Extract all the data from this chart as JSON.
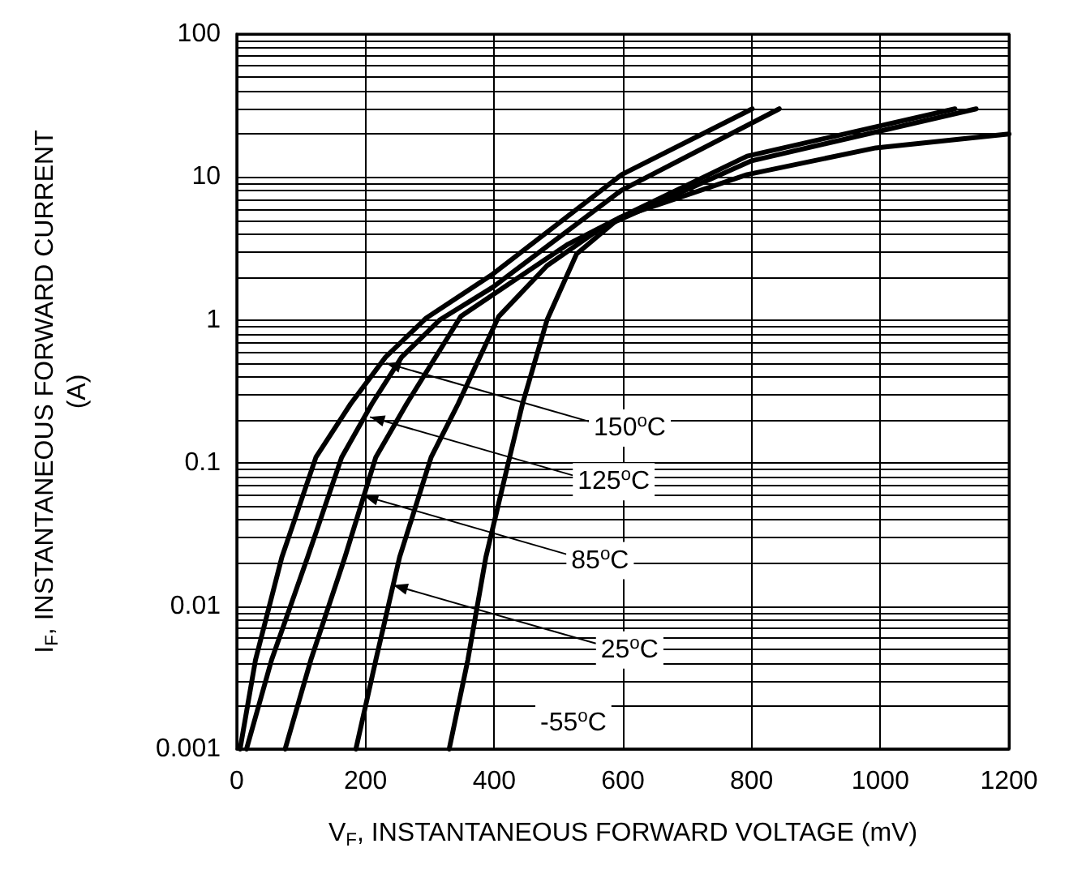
{
  "chart_data": {
    "type": "line",
    "xlabel": "V$_{F}$, INSTANTANEOUS FORWARD VOLTAGE (mV)",
    "ylabel": "I$_{F}$, INSTANTANEOUS FORWARD CURRENT\n(A)",
    "xlim": [
      0,
      1200
    ],
    "xticks": [
      0,
      200,
      400,
      600,
      800,
      1000,
      1200
    ],
    "ylim": [
      0.001,
      100
    ],
    "yticks": [
      0.001,
      0.01,
      0.1,
      1,
      10,
      100
    ],
    "log": "y",
    "grid": true,
    "marker": "none",
    "line_style": "solid",
    "series": [
      {
        "color": "#000000",
        "x": [
          5,
          29,
          70,
          123,
          177,
          231,
          294,
          398,
          598,
          801
        ],
        "values": [
          0.001,
          0.0042,
          0.022,
          0.11,
          0.26,
          0.55,
          1.03,
          2.1,
          10.4,
          30
        ]
      },
      {
        "color": "#000000",
        "x": [
          15,
          54,
          110,
          163,
          210,
          256,
          315,
          398,
          598,
          843
        ],
        "values": [
          0.001,
          0.0042,
          0.022,
          0.11,
          0.26,
          0.55,
          1.0,
          1.7,
          8.1,
          30
        ]
      },
      {
        "color": "#000000",
        "x": [
          75,
          115,
          168,
          216,
          264,
          348,
          515,
          595,
          793,
          1116
        ],
        "values": [
          0.001,
          0.0042,
          0.022,
          0.11,
          0.26,
          1.06,
          3.4,
          5.2,
          14,
          30
        ]
      },
      {
        "color": "#000000",
        "x": [
          185,
          216,
          253,
          302,
          344,
          407,
          482,
          566,
          800,
          1149
        ],
        "values": [
          0.001,
          0.0042,
          0.022,
          0.11,
          0.26,
          1.06,
          2.4,
          4.4,
          13,
          30
        ]
      },
      {
        "color": "#000000",
        "x": [
          330,
          359,
          387,
          424,
          444,
          482,
          528,
          595,
          793,
          993,
          1200
        ],
        "values": [
          0.001,
          0.0042,
          0.022,
          0.11,
          0.26,
          1.0,
          2.9,
          5.2,
          10.4,
          16,
          20
        ]
      }
    ],
    "annotations": [
      {
        "text": "150$^{o}$C",
        "x": 232,
        "y": 0.5
      },
      {
        "text": "125$^{o}$C",
        "x": 207,
        "y": 0.21
      },
      {
        "text": "85$^{o}$C",
        "x": 197,
        "y": 0.059
      },
      {
        "text": "25$^{o}$C",
        "x": 243,
        "y": 0.014
      },
      "-55$^{o}$C"
    ]
  }
}
